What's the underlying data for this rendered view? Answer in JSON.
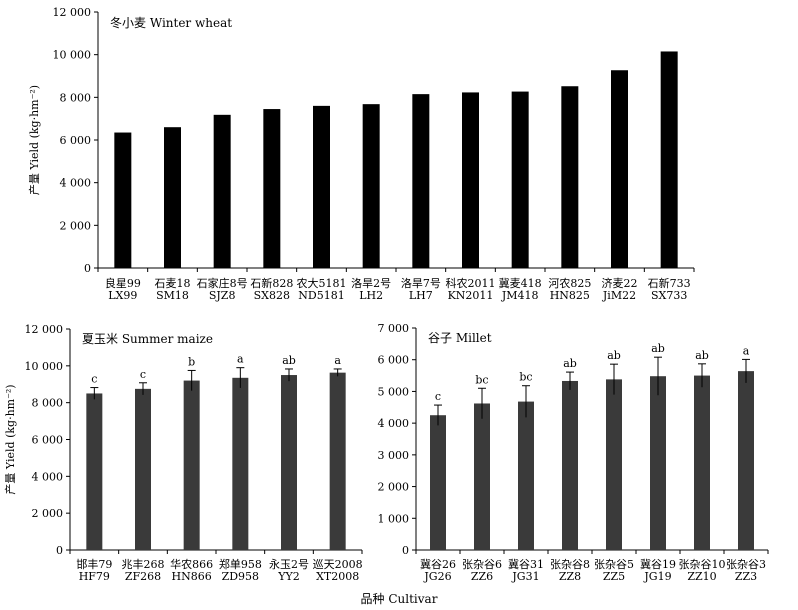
{
  "chart_data": [
    {
      "type": "bar",
      "title": "冬小麦 Winter wheat",
      "ylabel": "产量 Yield (kg·hm⁻²)",
      "ylim": [
        0,
        12000
      ],
      "yticks": [
        0,
        2000,
        4000,
        6000,
        8000,
        10000,
        12000
      ],
      "ytick_labels": [
        "0",
        "2 000",
        "4 000",
        "6 000",
        "8 000",
        "10 000",
        "12 000"
      ],
      "grid": false,
      "bar_color": "#000000",
      "categories": [
        {
          "zh": "良星99",
          "en": "LX99"
        },
        {
          "zh": "石麦18",
          "en": "SM18"
        },
        {
          "zh": "石家庄8号",
          "en": "SJZ8"
        },
        {
          "zh": "石新828",
          "en": "SX828"
        },
        {
          "zh": "农大5181",
          "en": "ND5181"
        },
        {
          "zh": "洛旱2号",
          "en": "LH2"
        },
        {
          "zh": "洛旱7号",
          "en": "LH7"
        },
        {
          "zh": "科农2011",
          "en": "KN2011"
        },
        {
          "zh": "冀麦418",
          "en": "JM418"
        },
        {
          "zh": "河农825",
          "en": "HN825"
        },
        {
          "zh": "济麦22",
          "en": "JiM22"
        },
        {
          "zh": "石新733",
          "en": "SX733"
        }
      ],
      "values": [
        6350,
        6600,
        7180,
        7450,
        7600,
        7680,
        8150,
        8230,
        8270,
        8520,
        9270,
        10150
      ]
    },
    {
      "type": "bar",
      "title": "夏玉米 Summer  maize",
      "ylabel": "产量 Yield (kg·hm⁻²)",
      "ylim": [
        0,
        12000
      ],
      "yticks": [
        0,
        2000,
        4000,
        6000,
        8000,
        10000,
        12000
      ],
      "ytick_labels": [
        "0",
        "2 000",
        "4 000",
        "6 000",
        "8 000",
        "10 000",
        "12 000"
      ],
      "grid": false,
      "bar_color": "#3a3a3a",
      "categories": [
        {
          "zh": "邯丰79",
          "en": "HF79"
        },
        {
          "zh": "兆丰268",
          "en": "ZF268"
        },
        {
          "zh": "华农866",
          "en": "HN866"
        },
        {
          "zh": "郑单958",
          "en": "ZD958"
        },
        {
          "zh": "永玉2号",
          "en": "YY2"
        },
        {
          "zh": "巡天2008",
          "en": "XT2008"
        }
      ],
      "values": [
        8500,
        8750,
        9200,
        9350,
        9500,
        9630
      ],
      "errors": [
        320,
        330,
        550,
        550,
        330,
        200
      ],
      "significance": [
        "c",
        "c",
        "b",
        "a",
        "ab",
        "a"
      ]
    },
    {
      "type": "bar",
      "title": "谷子 Millet",
      "ylabel": "",
      "ylim": [
        0,
        7000
      ],
      "yticks": [
        0,
        1000,
        2000,
        3000,
        4000,
        5000,
        6000,
        7000
      ],
      "ytick_labels": [
        "0",
        "1 000",
        "2 000",
        "3 000",
        "4 000",
        "5 000",
        "6 000",
        "7 000"
      ],
      "grid": false,
      "bar_color": "#3a3a3a",
      "categories": [
        {
          "zh": "冀谷26",
          "en": "JG26"
        },
        {
          "zh": "张杂谷6",
          "en": "ZZ6"
        },
        {
          "zh": "冀谷31",
          "en": "JG31"
        },
        {
          "zh": "张杂谷8",
          "en": "ZZ8"
        },
        {
          "zh": "张杂谷5",
          "en": "ZZ5"
        },
        {
          "zh": "冀谷19",
          "en": "JG19"
        },
        {
          "zh": "张杂谷10",
          "en": "ZZ10"
        },
        {
          "zh": "张杂谷3",
          "en": "ZZ3"
        }
      ],
      "values": [
        4250,
        4620,
        4680,
        5330,
        5380,
        5480,
        5500,
        5640
      ],
      "errors": [
        320,
        480,
        500,
        280,
        480,
        600,
        370,
        370
      ],
      "significance": [
        "c",
        "bc",
        "bc",
        "ab",
        "ab",
        "ab",
        "ab",
        "a"
      ]
    }
  ],
  "shared_xlabel": "品种 Cultivar"
}
